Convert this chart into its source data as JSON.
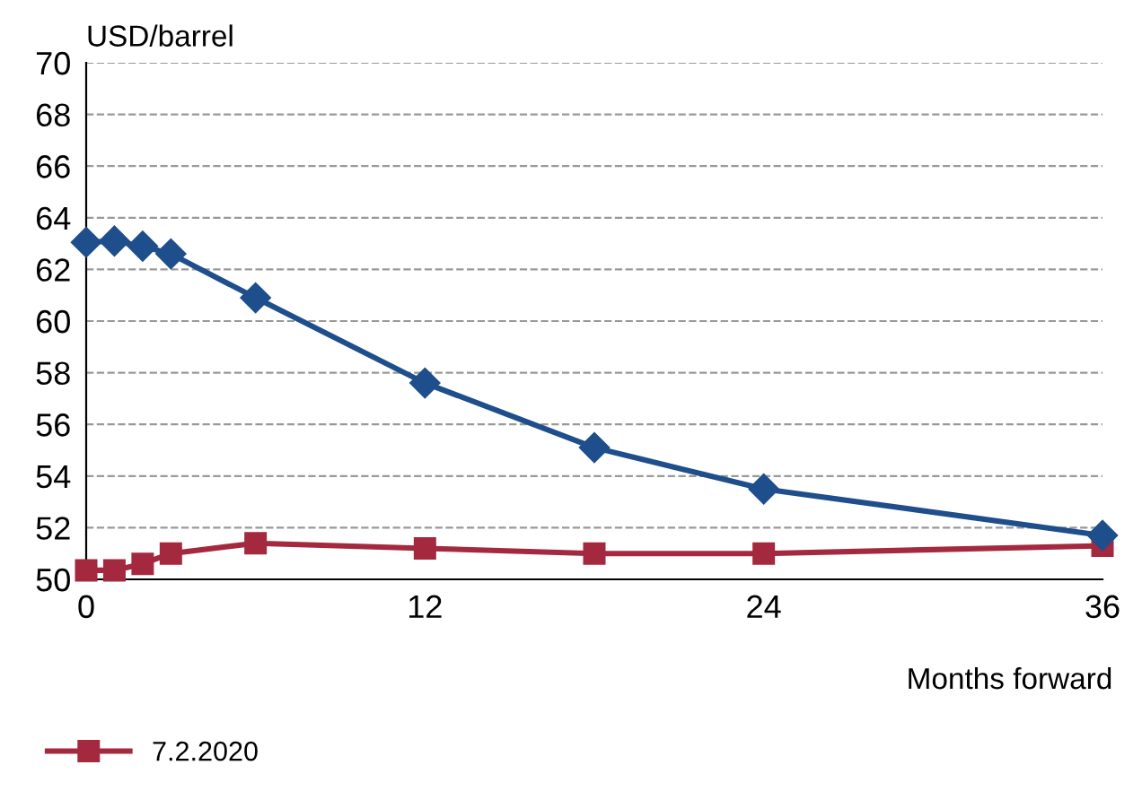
{
  "chart_data": {
    "type": "line",
    "ylabel": "USD/barrel",
    "xlabel": "Months forward",
    "x": [
      0,
      1,
      2,
      3,
      6,
      12,
      18,
      24,
      36
    ],
    "series": [
      {
        "color": "#1f4e8c",
        "marker": "diamond",
        "values": [
          63.05,
          63.1,
          62.9,
          62.6,
          60.9,
          57.6,
          55.1,
          53.5,
          51.7
        ]
      },
      {
        "name": "7.2.2020",
        "color": "#a4293f",
        "marker": "square",
        "values": [
          50.35,
          50.35,
          50.6,
          51.0,
          51.4,
          51.2,
          51.0,
          51.0,
          51.3
        ]
      }
    ],
    "xlim": [
      0,
      36
    ],
    "xticks": [
      0,
      12,
      24,
      36
    ],
    "ylim": [
      50,
      70
    ],
    "yticks": [
      50,
      52,
      54,
      56,
      58,
      60,
      62,
      64,
      66,
      68,
      70
    ],
    "grid": "y",
    "legend": "bottom left",
    "line_style": "solid"
  }
}
